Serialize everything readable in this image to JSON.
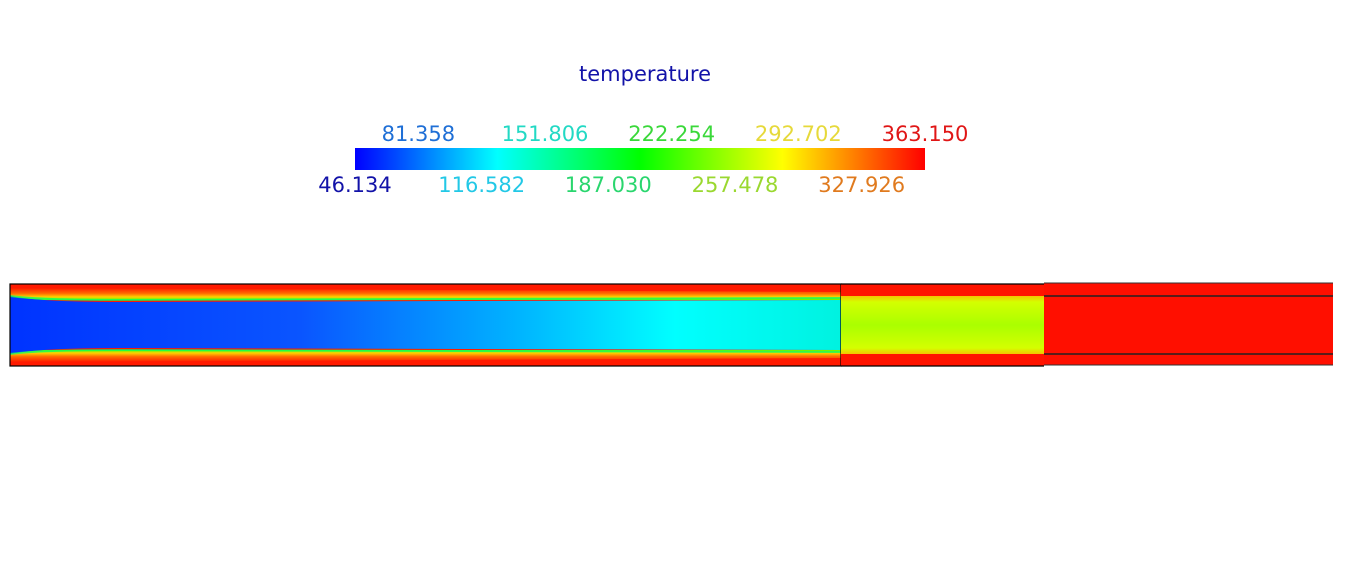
{
  "chart_data": {
    "type": "heatmap",
    "title": "temperature",
    "colorbar": {
      "min": 46.134,
      "max": 363.15,
      "orientation": "horizontal",
      "placement": "top-center",
      "colormap": "rainbow",
      "colors": [
        "#0000ff",
        "#00ffff",
        "#00ff00",
        "#ffff00",
        "#ff0000"
      ],
      "ticks_top": [
        {
          "value": 81.358,
          "label": "81.358",
          "color": "#1f6fd6"
        },
        {
          "value": 151.806,
          "label": "151.806",
          "color": "#22d9c4"
        },
        {
          "value": 222.254,
          "label": "222.254",
          "color": "#3ad83a"
        },
        {
          "value": 292.702,
          "label": "292.702",
          "color": "#e6d93a"
        },
        {
          "value": 363.15,
          "label": "363.150",
          "color": "#e01616"
        }
      ],
      "ticks_bottom": [
        {
          "value": 46.134,
          "label": "46.134",
          "color": "#1212a8"
        },
        {
          "value": 116.582,
          "label": "116.582",
          "color": "#22c8e6"
        },
        {
          "value": 187.03,
          "label": "187.030",
          "color": "#2ad66e"
        },
        {
          "value": 257.478,
          "label": "257.478",
          "color": "#9ad830"
        },
        {
          "value": 327.926,
          "label": "327.926",
          "color": "#e07a1e"
        }
      ]
    },
    "regions": [
      {
        "name": "tube-inlet-core",
        "core_start": 46.134,
        "core_end": 130,
        "wall": 363.15
      },
      {
        "name": "tube-middle-section",
        "core": 265,
        "wall": 363.15
      },
      {
        "name": "tube-outlet-section",
        "core": 363.15,
        "wall": 363.15
      }
    ]
  }
}
